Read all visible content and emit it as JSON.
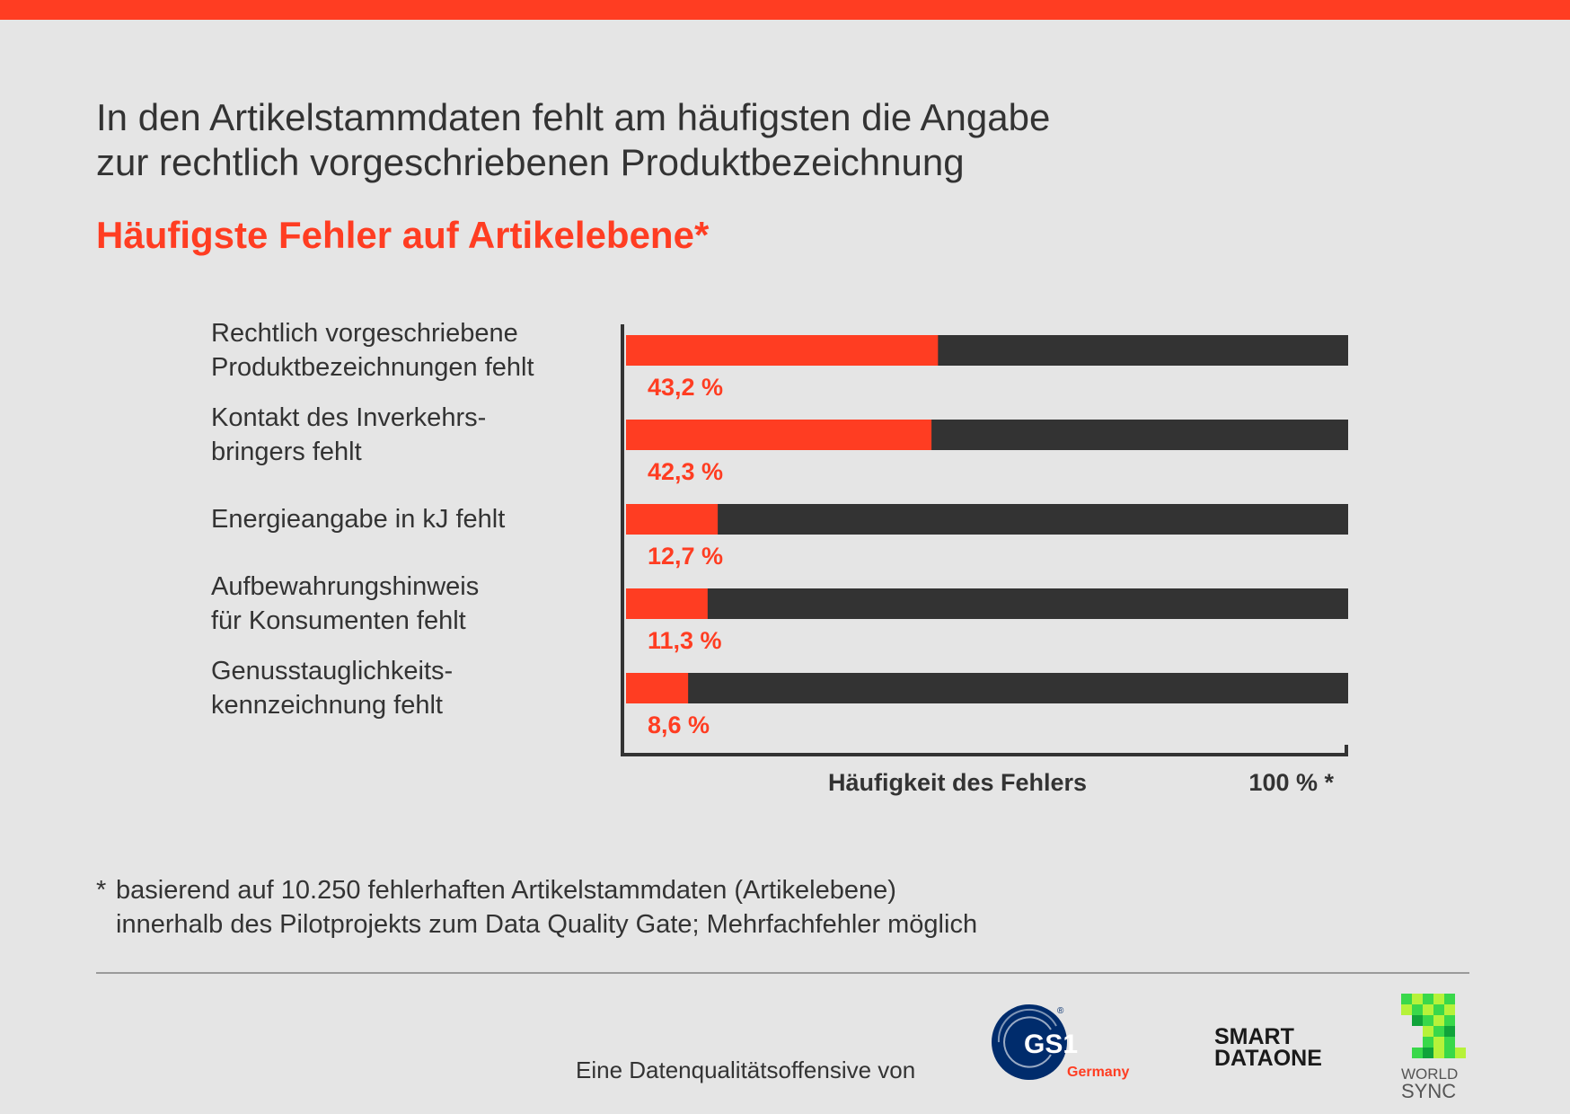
{
  "header": {
    "headline_line1": "In den Artikelstammdaten fehlt am häufigsten die Angabe",
    "headline_line2": "zur rechtlich vorgeschriebenen Produktbezeichnung",
    "subtitle": "Häufigste Fehler auf Artikelebene*"
  },
  "chart_data": {
    "type": "bar",
    "orientation": "horizontal",
    "categories": [
      [
        "Rechtlich vorgeschriebene",
        "Produktbezeichnungen fehlt"
      ],
      [
        "Kontakt des Inverkehrs-",
        "bringers fehlt"
      ],
      [
        "Energieangabe in kJ fehlt"
      ],
      [
        "Aufbewahrungshinweis",
        "für Konsumenten fehlt"
      ],
      [
        "Genusstauglichkeits-",
        "kennzeichnung fehlt"
      ]
    ],
    "values": [
      43.2,
      42.3,
      12.7,
      11.3,
      8.6
    ],
    "value_labels": [
      "43,2 %",
      "42,3 %",
      "12,7 %",
      "11,3 %",
      "8,6 %"
    ],
    "xlim": [
      0,
      100
    ],
    "xlabel": "Häufigkeit des Fehlers",
    "x_max_label": "100 % *",
    "colors": {
      "value": "#ff3d22",
      "remainder": "#333333"
    },
    "grid": false,
    "legend": "none"
  },
  "footnote": {
    "star": "*",
    "line1": "basierend auf 10.250 fehlerhaften Artikelstammdaten (Artikelebene)",
    "line2": "innerhalb des Pilotprojekts zum Data Quality Gate; Mehrfachfehler möglich"
  },
  "footer": {
    "text": "Eine Datenqualitätsoffensive von",
    "logos": {
      "gs1": {
        "main": "GS1",
        "sub": "Germany",
        "mark": "®"
      },
      "smartdataone": {
        "line1": "SMART",
        "line2": "DATAONE"
      },
      "worldsync": {
        "line1": "WORLD",
        "line2": "SYNC"
      }
    }
  },
  "colors": {
    "accent": "#ff3d22",
    "text": "#333333",
    "background": "#e5e5e5"
  }
}
